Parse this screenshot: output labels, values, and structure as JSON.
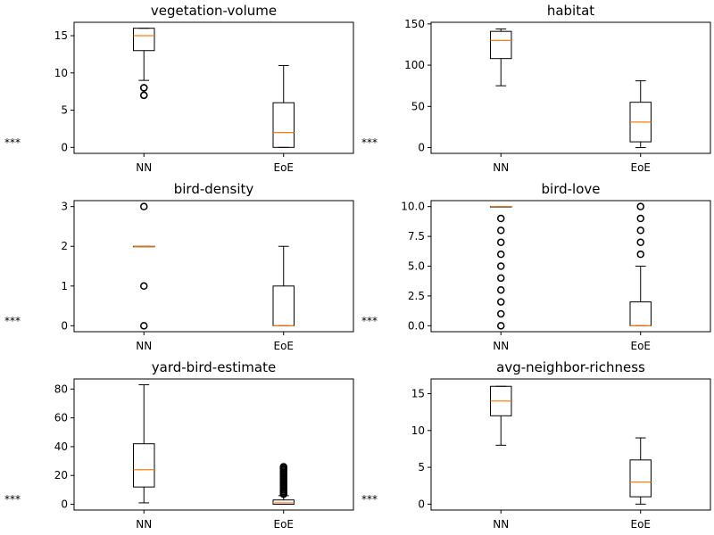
{
  "chart_data": [
    {
      "type": "boxplot",
      "title": "vegetation-volume",
      "categories": [
        "NN",
        "EoE"
      ],
      "ylim": [
        -0.8,
        16.8
      ],
      "yticks": [
        0,
        5,
        10,
        15
      ],
      "boxes": [
        {
          "whislo": 9,
          "q1": 13,
          "med": 15,
          "q3": 16,
          "whishi": 16,
          "fliers": [
            7,
            7,
            8,
            8
          ]
        },
        {
          "whislo": 0,
          "q1": 0,
          "med": 2,
          "q3": 6,
          "whishi": 11,
          "fliers": []
        }
      ],
      "annotation": "***"
    },
    {
      "type": "boxplot",
      "title": "habitat",
      "categories": [
        "NN",
        "EoE"
      ],
      "ylim": [
        -7,
        152
      ],
      "yticks": [
        0,
        50,
        100,
        150
      ],
      "boxes": [
        {
          "whislo": 75,
          "q1": 108,
          "med": 130,
          "q3": 141,
          "whishi": 144,
          "fliers": []
        },
        {
          "whislo": 0,
          "q1": 7,
          "med": 31,
          "q3": 55,
          "whishi": 81,
          "fliers": []
        }
      ],
      "annotation": "***"
    },
    {
      "type": "boxplot",
      "title": "bird-density",
      "categories": [
        "NN",
        "EoE"
      ],
      "ylim": [
        -0.15,
        3.15
      ],
      "yticks": [
        0,
        1,
        2,
        3
      ],
      "boxes": [
        {
          "whislo": 2,
          "q1": 2,
          "med": 2,
          "q3": 2,
          "whishi": 2,
          "fliers": [
            0,
            1,
            3
          ]
        },
        {
          "whislo": 0,
          "q1": 0,
          "med": 0,
          "q3": 1,
          "whishi": 2,
          "fliers": []
        }
      ],
      "annotation": "***"
    },
    {
      "type": "boxplot",
      "title": "bird-love",
      "categories": [
        "NN",
        "EoE"
      ],
      "ylim": [
        -0.5,
        10.5
      ],
      "yticks": [
        0.0,
        2.5,
        5.0,
        7.5,
        10.0
      ],
      "yticklabels": [
        "0.0",
        "2.5",
        "5.0",
        "7.5",
        "10.0"
      ],
      "boxes": [
        {
          "whislo": 10,
          "q1": 10,
          "med": 10,
          "q3": 10,
          "whishi": 10,
          "fliers": [
            0,
            1,
            2,
            3,
            4,
            5,
            6,
            7,
            8,
            9
          ]
        },
        {
          "whislo": 0,
          "q1": 0,
          "med": 0,
          "q3": 2,
          "whishi": 5,
          "fliers": [
            6,
            7,
            8,
            9,
            10
          ]
        }
      ],
      "annotation": "***"
    },
    {
      "type": "boxplot",
      "title": "yard-bird-estimate",
      "categories": [
        "NN",
        "EoE"
      ],
      "ylim": [
        -4,
        87
      ],
      "yticks": [
        0,
        20,
        40,
        60,
        80
      ],
      "boxes": [
        {
          "whislo": 1,
          "q1": 12,
          "med": 24,
          "q3": 42,
          "whishi": 83,
          "fliers": []
        },
        {
          "whislo": 0,
          "q1": 0,
          "med": 1,
          "q3": 3,
          "whishi": 6,
          "fliers": [
            7,
            8,
            9,
            10,
            11,
            12,
            13,
            14,
            15,
            16,
            17,
            18,
            19,
            20,
            21,
            22,
            23,
            24,
            25,
            26
          ]
        }
      ],
      "annotation": "***"
    },
    {
      "type": "boxplot",
      "title": "avg-neighbor-richness",
      "categories": [
        "NN",
        "EoE"
      ],
      "ylim": [
        -0.8,
        17
      ],
      "yticks": [
        0,
        5,
        10,
        15
      ],
      "boxes": [
        {
          "whislo": 8,
          "q1": 12,
          "med": 14,
          "q3": 16,
          "whishi": 16,
          "fliers": []
        },
        {
          "whislo": 0,
          "q1": 1,
          "med": 3,
          "q3": 6,
          "whishi": 9,
          "fliers": []
        }
      ],
      "annotation": "***"
    }
  ],
  "colors": {
    "median": "#ff7f0e",
    "box": "#000000",
    "background": "#ffffff"
  }
}
